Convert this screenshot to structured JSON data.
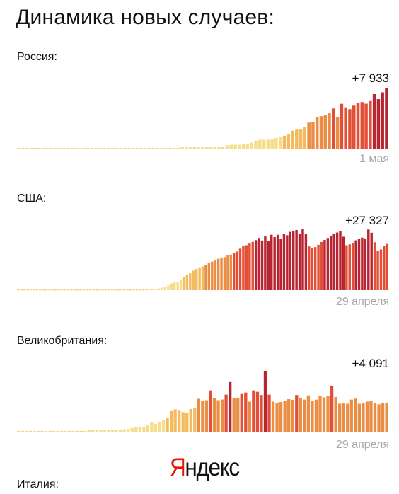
{
  "heading": "Динамика новых случаев:",
  "brand": {
    "first_letter": "Я",
    "rest": "ндекс",
    "first_letter_color": "#e61400"
  },
  "colors": {
    "palette": [
      "#f6dd8b",
      "#f3bb5f",
      "#ea8e46",
      "#e34f36",
      "#b72533"
    ],
    "baseline": "#f3d58a",
    "date_text": "#a8a8a8"
  },
  "chart_data": [
    {
      "type": "bar",
      "title": "Россия:",
      "latest_label": "+7 933",
      "last_date": "1 мая",
      "values": [
        0,
        0,
        0,
        0,
        0,
        0,
        0,
        0,
        0,
        0,
        0,
        0,
        0,
        0,
        0,
        0,
        0,
        0,
        0,
        0,
        0,
        0,
        0,
        0,
        0,
        0,
        0,
        0,
        0,
        0,
        0,
        0,
        0,
        0,
        0,
        0,
        0,
        0,
        0,
        0,
        10,
        20,
        30,
        40,
        60,
        80,
        120,
        170,
        220,
        240,
        300,
        440,
        490,
        500,
        500,
        570,
        660,
        770,
        1030,
        1150,
        1150,
        1170,
        1200,
        1380,
        1510,
        1670,
        1850,
        2330,
        2560,
        2570,
        2770,
        3390,
        3450,
        4070,
        4230,
        4380,
        4680,
        5230,
        4150,
        5840,
        5380,
        5140,
        5600,
        5980,
        6060,
        5850,
        6200,
        7100,
        6450,
        7330,
        7930
      ]
    },
    {
      "type": "bar",
      "title": "США:",
      "latest_label": "+27 327",
      "last_date": "29 апреля",
      "values": [
        0,
        0,
        0,
        0,
        0,
        0,
        0,
        0,
        0,
        0,
        0,
        0,
        0,
        0,
        0,
        0,
        0,
        0,
        0,
        0,
        0,
        0,
        0,
        0,
        0,
        0,
        0,
        0,
        0,
        0,
        0,
        0,
        0,
        0,
        0,
        0,
        0,
        0,
        0,
        0,
        0,
        0,
        100,
        300,
        600,
        1000,
        1500,
        2000,
        2800,
        4000,
        4500,
        5000,
        6000,
        8000,
        9000,
        10000,
        11500,
        12500,
        13500,
        14000,
        15000,
        16000,
        16800,
        17500,
        18500,
        19000,
        19500,
        20500,
        21000,
        22000,
        22800,
        24500,
        26000,
        26500,
        27500,
        28500,
        29500,
        30800,
        29300,
        31700,
        29200,
        32700,
        31300,
        32700,
        30100,
        33100,
        32400,
        34400,
        35100,
        35500,
        33200,
        35900,
        33100,
        25800,
        24600,
        25400,
        26800,
        28400,
        29600,
        30800,
        32000,
        33000,
        34000,
        34900,
        31500,
        26500,
        27000,
        27800,
        29400,
        30500,
        31000,
        30500,
        35800,
        33900,
        28300,
        23000,
        24000,
        26000,
        27300
      ]
    },
    {
      "type": "bar",
      "title": "Великобритания:",
      "latest_label": "+4 091",
      "last_date": "29 апреля",
      "values": [
        0,
        0,
        0,
        0,
        0,
        0,
        0,
        0,
        0,
        0,
        0,
        0,
        0,
        0,
        0,
        0,
        0,
        0,
        10,
        20,
        40,
        60,
        100,
        150,
        120,
        220,
        300,
        330,
        400,
        520,
        670,
        640,
        670,
        960,
        1420,
        1110,
        1440,
        1720,
        2000,
        2950,
        3200,
        3000,
        2800,
        2700,
        3250,
        3400,
        4700,
        4400,
        4500,
        5900,
        4800,
        4500,
        4600,
        5300,
        7100,
        4800,
        4800,
        5500,
        5600,
        4300,
        5900,
        5700,
        5250,
        8700,
        5300,
        4300,
        4050,
        4250,
        4400,
        4650,
        4560,
        5240,
        4840,
        4590,
        5190,
        4450,
        4580,
        5050,
        4920,
        5160,
        6590,
        4960,
        4000,
        4120,
        3990,
        4590,
        4730,
        3990,
        4130,
        4310,
        4460,
        4050,
        3920,
        4100,
        4091
      ]
    },
    {
      "title": "Италия:"
    }
  ]
}
